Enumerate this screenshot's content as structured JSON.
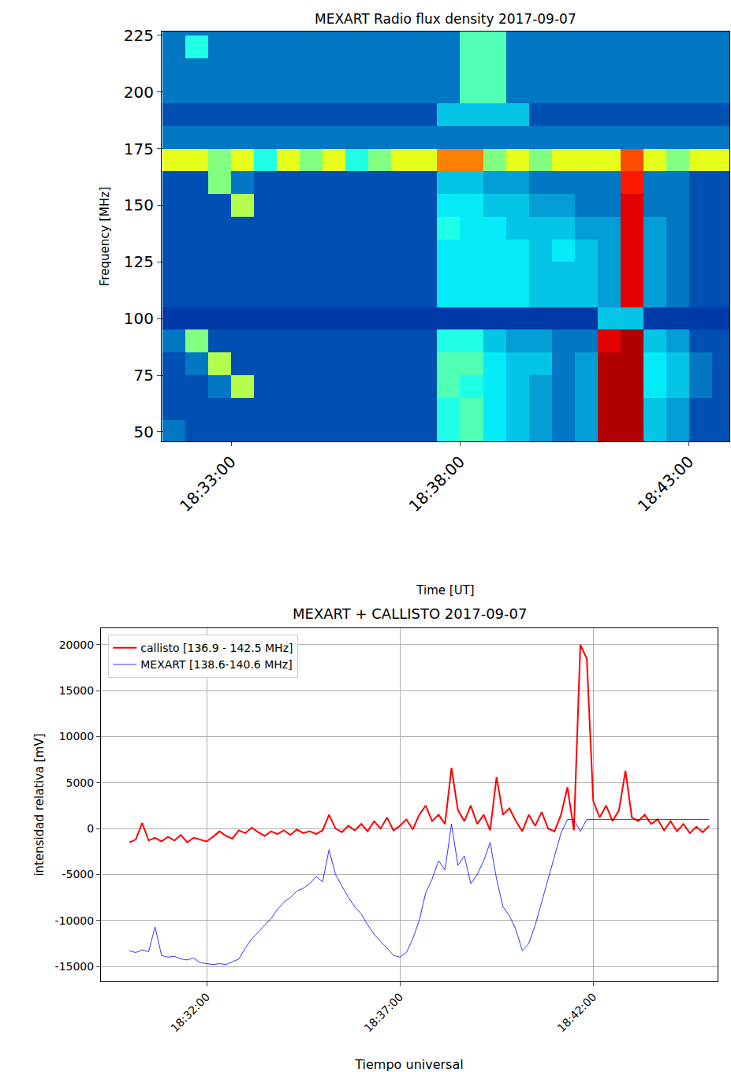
{
  "chart_data": [
    {
      "type": "heatmap",
      "title": "MEXART Radio flux density 2017-09-07",
      "x_label": "Time [UT]",
      "y_label": "Frequency [MHz]",
      "x": [
        "18:31:45",
        "18:32:15",
        "18:32:45",
        "18:33:15",
        "18:33:45",
        "18:34:15",
        "18:34:45",
        "18:35:15",
        "18:35:45",
        "18:36:15",
        "18:36:45",
        "18:37:15",
        "18:37:45",
        "18:38:15",
        "18:38:45",
        "18:39:15",
        "18:39:45",
        "18:40:15",
        "18:40:45",
        "18:41:15",
        "18:41:45",
        "18:42:15",
        "18:42:45",
        "18:43:15",
        "18:43:45"
      ],
      "y": [
        50,
        60,
        70,
        80,
        90,
        100,
        110,
        120,
        130,
        140,
        150,
        160,
        170,
        180,
        190,
        200,
        210,
        220,
        230
      ],
      "z": [
        [
          0.2,
          0.15,
          0.15,
          0.15,
          0.15,
          0.15,
          0.15,
          0.15,
          0.15,
          0.15,
          0.15,
          0.15,
          0.4,
          0.45,
          0.35,
          0.3,
          0.25,
          0.2,
          0.25,
          0.95,
          0.95,
          0.3,
          0.25,
          0.15,
          0.15
        ],
        [
          0.15,
          0.15,
          0.15,
          0.15,
          0.15,
          0.15,
          0.15,
          0.15,
          0.15,
          0.15,
          0.15,
          0.15,
          0.4,
          0.45,
          0.35,
          0.3,
          0.25,
          0.2,
          0.25,
          0.95,
          0.95,
          0.3,
          0.25,
          0.15,
          0.15
        ],
        [
          0.15,
          0.15,
          0.2,
          0.55,
          0.15,
          0.15,
          0.15,
          0.15,
          0.15,
          0.15,
          0.15,
          0.15,
          0.45,
          0.4,
          0.35,
          0.3,
          0.25,
          0.2,
          0.25,
          0.95,
          0.95,
          0.35,
          0.3,
          0.2,
          0.15
        ],
        [
          0.15,
          0.2,
          0.55,
          0.15,
          0.15,
          0.15,
          0.15,
          0.15,
          0.15,
          0.15,
          0.15,
          0.15,
          0.45,
          0.45,
          0.35,
          0.3,
          0.3,
          0.2,
          0.25,
          0.95,
          0.95,
          0.35,
          0.3,
          0.2,
          0.15
        ],
        [
          0.2,
          0.5,
          0.15,
          0.15,
          0.15,
          0.15,
          0.15,
          0.15,
          0.15,
          0.15,
          0.15,
          0.15,
          0.4,
          0.4,
          0.3,
          0.25,
          0.25,
          0.2,
          0.2,
          0.9,
          0.95,
          0.3,
          0.25,
          0.15,
          0.15
        ],
        [
          0.12,
          0.12,
          0.12,
          0.12,
          0.12,
          0.12,
          0.12,
          0.12,
          0.12,
          0.12,
          0.12,
          0.12,
          0.12,
          0.12,
          0.12,
          0.12,
          0.12,
          0.12,
          0.12,
          0.3,
          0.3,
          0.12,
          0.12,
          0.12,
          0.12
        ],
        [
          0.15,
          0.15,
          0.15,
          0.15,
          0.15,
          0.15,
          0.15,
          0.15,
          0.15,
          0.15,
          0.15,
          0.15,
          0.35,
          0.35,
          0.35,
          0.35,
          0.3,
          0.3,
          0.3,
          0.25,
          0.9,
          0.25,
          0.2,
          0.15,
          0.15
        ],
        [
          0.15,
          0.15,
          0.15,
          0.15,
          0.15,
          0.15,
          0.15,
          0.15,
          0.15,
          0.15,
          0.15,
          0.15,
          0.35,
          0.35,
          0.35,
          0.35,
          0.3,
          0.3,
          0.3,
          0.25,
          0.9,
          0.25,
          0.2,
          0.15,
          0.15
        ],
        [
          0.15,
          0.15,
          0.15,
          0.15,
          0.15,
          0.15,
          0.15,
          0.15,
          0.15,
          0.15,
          0.15,
          0.15,
          0.35,
          0.35,
          0.35,
          0.35,
          0.3,
          0.35,
          0.3,
          0.25,
          0.9,
          0.25,
          0.2,
          0.15,
          0.15
        ],
        [
          0.15,
          0.15,
          0.15,
          0.15,
          0.15,
          0.15,
          0.15,
          0.15,
          0.15,
          0.15,
          0.15,
          0.15,
          0.4,
          0.35,
          0.35,
          0.3,
          0.3,
          0.3,
          0.25,
          0.25,
          0.9,
          0.25,
          0.2,
          0.15,
          0.15
        ],
        [
          0.15,
          0.15,
          0.15,
          0.55,
          0.15,
          0.15,
          0.15,
          0.15,
          0.15,
          0.15,
          0.15,
          0.15,
          0.35,
          0.35,
          0.3,
          0.3,
          0.25,
          0.25,
          0.2,
          0.2,
          0.9,
          0.2,
          0.2,
          0.15,
          0.15
        ],
        [
          0.15,
          0.15,
          0.5,
          0.2,
          0.15,
          0.15,
          0.15,
          0.15,
          0.15,
          0.15,
          0.15,
          0.15,
          0.3,
          0.3,
          0.25,
          0.25,
          0.2,
          0.2,
          0.2,
          0.2,
          0.85,
          0.2,
          0.2,
          0.15,
          0.15
        ],
        [
          0.6,
          0.6,
          0.5,
          0.6,
          0.4,
          0.6,
          0.5,
          0.6,
          0.4,
          0.5,
          0.6,
          0.6,
          0.75,
          0.75,
          0.5,
          0.6,
          0.5,
          0.6,
          0.6,
          0.6,
          0.8,
          0.6,
          0.5,
          0.6,
          0.6
        ],
        [
          0.2,
          0.2,
          0.2,
          0.2,
          0.2,
          0.2,
          0.2,
          0.2,
          0.2,
          0.2,
          0.2,
          0.2,
          0.2,
          0.2,
          0.2,
          0.2,
          0.2,
          0.2,
          0.2,
          0.2,
          0.2,
          0.2,
          0.2,
          0.2,
          0.2
        ],
        [
          0.15,
          0.15,
          0.15,
          0.15,
          0.15,
          0.15,
          0.15,
          0.15,
          0.15,
          0.15,
          0.15,
          0.15,
          0.3,
          0.3,
          0.3,
          0.3,
          0.15,
          0.15,
          0.15,
          0.15,
          0.15,
          0.15,
          0.15,
          0.15,
          0.15
        ],
        [
          0.2,
          0.2,
          0.2,
          0.2,
          0.2,
          0.2,
          0.2,
          0.2,
          0.2,
          0.2,
          0.2,
          0.2,
          0.2,
          0.45,
          0.45,
          0.2,
          0.2,
          0.2,
          0.2,
          0.2,
          0.2,
          0.2,
          0.2,
          0.2,
          0.2
        ],
        [
          0.2,
          0.2,
          0.2,
          0.2,
          0.2,
          0.2,
          0.2,
          0.2,
          0.2,
          0.2,
          0.2,
          0.2,
          0.2,
          0.45,
          0.45,
          0.2,
          0.2,
          0.2,
          0.2,
          0.2,
          0.2,
          0.2,
          0.2,
          0.2,
          0.2
        ],
        [
          0.2,
          0.4,
          0.2,
          0.2,
          0.2,
          0.2,
          0.2,
          0.2,
          0.2,
          0.2,
          0.2,
          0.2,
          0.2,
          0.45,
          0.45,
          0.2,
          0.2,
          0.2,
          0.2,
          0.2,
          0.2,
          0.2,
          0.2,
          0.2,
          0.2
        ],
        [
          0.2,
          0.2,
          0.2,
          0.2,
          0.2,
          0.2,
          0.2,
          0.2,
          0.2,
          0.2,
          0.2,
          0.2,
          0.2,
          0.45,
          0.45,
          0.2,
          0.2,
          0.2,
          0.2,
          0.2,
          0.2,
          0.2,
          0.2,
          0.2,
          0.2
        ]
      ],
      "zlim": [
        0,
        1
      ],
      "color": "Jet",
      "xlim": [
        "18:31:29",
        "18:43:53"
      ],
      "xticks": [
        "18:33:00",
        "18:38:00",
        "18:43:00"
      ],
      "ylim": [
        45.8,
        226.7
      ],
      "yticks": [
        50,
        75,
        100,
        125,
        150,
        175,
        200,
        225
      ],
      "grid": true
    },
    {
      "type": "line",
      "title": "MEXART + CALLISTO 2017-09-07",
      "x_label": "Tiempo universal",
      "y_label": "intensidad relativa [mV]",
      "x": [
        "18:30:00",
        "18:30:10",
        "18:30:20",
        "18:30:30",
        "18:30:40",
        "18:30:50",
        "18:31:00",
        "18:31:10",
        "18:31:20",
        "18:31:30",
        "18:31:40",
        "18:31:50",
        "18:32:00",
        "18:32:10",
        "18:32:20",
        "18:32:30",
        "18:32:40",
        "18:32:50",
        "18:33:00",
        "18:33:10",
        "18:33:20",
        "18:33:30",
        "18:33:40",
        "18:33:50",
        "18:34:00",
        "18:34:10",
        "18:34:20",
        "18:34:30",
        "18:34:40",
        "18:34:50",
        "18:35:00",
        "18:35:10",
        "18:35:20",
        "18:35:30",
        "18:35:40",
        "18:35:50",
        "18:36:00",
        "18:36:10",
        "18:36:20",
        "18:36:30",
        "18:36:40",
        "18:36:50",
        "18:37:00",
        "18:37:10",
        "18:37:20",
        "18:37:30",
        "18:37:40",
        "18:37:50",
        "18:38:00",
        "18:38:10",
        "18:38:20",
        "18:38:30",
        "18:38:40",
        "18:38:50",
        "18:39:00",
        "18:39:10",
        "18:39:20",
        "18:39:30",
        "18:39:40",
        "18:39:50",
        "18:40:00",
        "18:40:10",
        "18:40:20",
        "18:40:30",
        "18:40:40",
        "18:40:50",
        "18:41:00",
        "18:41:10",
        "18:41:20",
        "18:41:30",
        "18:41:40",
        "18:41:50",
        "18:42:00",
        "18:42:10",
        "18:42:20",
        "18:42:30",
        "18:42:40",
        "18:42:50",
        "18:43:00",
        "18:43:10",
        "18:43:20",
        "18:43:30",
        "18:43:40",
        "18:43:50",
        "18:44:00",
        "18:44:10",
        "18:44:20",
        "18:44:30",
        "18:44:40",
        "18:44:50",
        "18:45:00"
      ],
      "series": [
        {
          "name": "callisto [136.9 - 142.5 MHz]",
          "color": "#ff0000",
          "values": [
            -1500,
            -1200,
            600,
            -1300,
            -1000,
            -1400,
            -900,
            -1300,
            -700,
            -1500,
            -1000,
            -1200,
            -1400,
            -900,
            -300,
            -800,
            -1100,
            -200,
            -500,
            100,
            -400,
            -800,
            -300,
            -600,
            -200,
            -700,
            -100,
            -500,
            -300,
            -600,
            -200,
            1500,
            0,
            -400,
            300,
            -200,
            500,
            -300,
            800,
            0,
            1200,
            -200,
            300,
            1000,
            -100,
            1500,
            2500,
            800,
            1500,
            500,
            6600,
            2000,
            800,
            2500,
            500,
            1500,
            -200,
            5600,
            1500,
            2200,
            800,
            -300,
            1500,
            300,
            1800,
            0,
            -300,
            1500,
            4500,
            -200,
            20000,
            18500,
            3000,
            1200,
            2500,
            800,
            2000,
            6300,
            1200,
            800,
            1500,
            500,
            1000,
            -200,
            800,
            -300,
            500,
            -500,
            200,
            -400,
            300
          ]
        },
        {
          "name": "MEXART [138.6-140.6 MHz]",
          "color": "#0000ff",
          "values": [
            -13300,
            -13500,
            -13200,
            -13400,
            -10700,
            -13800,
            -14000,
            -13900,
            -14200,
            -14300,
            -14100,
            -14600,
            -14700,
            -14800,
            -14700,
            -14800,
            -14500,
            -14200,
            -13000,
            -12000,
            -11300,
            -10500,
            -9800,
            -8800,
            -8000,
            -7500,
            -6800,
            -6500,
            -6000,
            -5200,
            -5800,
            -2300,
            -5000,
            -6200,
            -7500,
            -8500,
            -9300,
            -10500,
            -11500,
            -12300,
            -13000,
            -13800,
            -14000,
            -13500,
            -12000,
            -10000,
            -7000,
            -5500,
            -3500,
            -4500,
            500,
            -4000,
            -3000,
            -6000,
            -5000,
            -3500,
            -1500,
            -5500,
            -8500,
            -9500,
            -11000,
            -13300,
            -12500,
            -10500,
            -8000,
            -5500,
            -3000,
            -500,
            1000,
            1000,
            -300,
            1000,
            1000,
            1000,
            1000,
            1000,
            1000,
            1000,
            1000,
            1000,
            1000,
            1000,
            1000,
            1000,
            1000,
            1000,
            1000,
            1000,
            1000,
            1000,
            1000
          ]
        }
      ],
      "xlim": [
        "18:29:16",
        "18:45:13"
      ],
      "xticks": [
        "18:32:00",
        "18:37:00",
        "18:42:00"
      ],
      "ylim": [
        -16630,
        21800
      ],
      "yticks": [
        -15000,
        -10000,
        -5000,
        0,
        5000,
        10000,
        15000,
        20000
      ],
      "grid": true,
      "legend": "upper left"
    }
  ]
}
